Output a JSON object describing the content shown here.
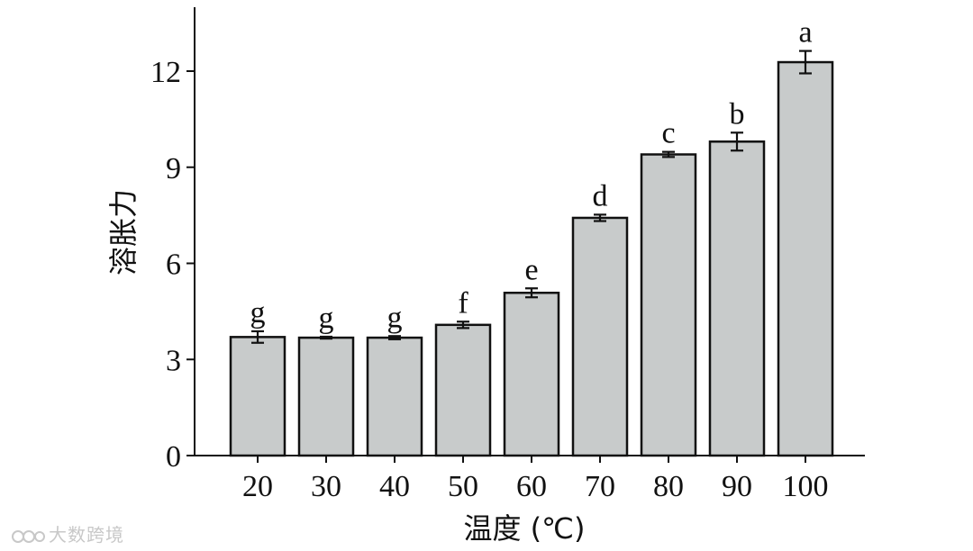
{
  "chart_data": {
    "type": "bar",
    "categories": [
      "20",
      "30",
      "40",
      "50",
      "60",
      "70",
      "80",
      "90",
      "100"
    ],
    "values": [
      3.7,
      3.68,
      3.68,
      4.08,
      5.08,
      7.42,
      9.4,
      9.8,
      12.28
    ],
    "errors": [
      0.18,
      0.03,
      0.05,
      0.1,
      0.14,
      0.1,
      0.08,
      0.28,
      0.35
    ],
    "significance": [
      "g",
      "g",
      "g",
      "f",
      "e",
      "d",
      "c",
      "b",
      "a"
    ],
    "xlabel": "温度 (℃)",
    "ylabel": "溶胀力",
    "ylim": [
      0,
      14
    ],
    "yticks": [
      0,
      3,
      6,
      9,
      12
    ],
    "grid": false,
    "colors": {
      "bar_fill": "#c8cbcb",
      "bar_stroke": "#111111"
    }
  },
  "watermark": {
    "text": "大数跨境",
    "icon": "dashuju-logo-icon"
  }
}
